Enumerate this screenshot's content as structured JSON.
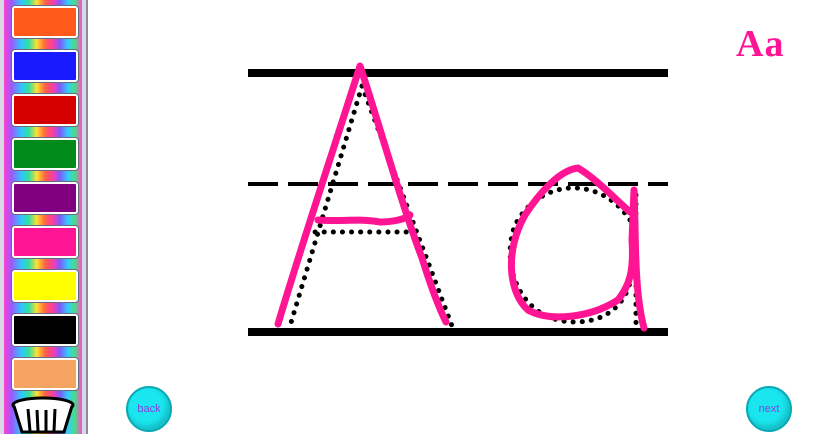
{
  "palette": {
    "colors": [
      "#ff5a1a",
      "#1a1aff",
      "#d40000",
      "#008a1a",
      "#800080",
      "#ff1493",
      "#ffff00",
      "#000000",
      "#f4a460"
    ],
    "trash_icon": "trash-basket-icon"
  },
  "lesson": {
    "title": "Aa"
  },
  "nav": {
    "back_label": "back",
    "next_label": "next"
  },
  "colors": {
    "ink": "#ff1493",
    "guide": "#000000",
    "button": "#19e6ef"
  }
}
